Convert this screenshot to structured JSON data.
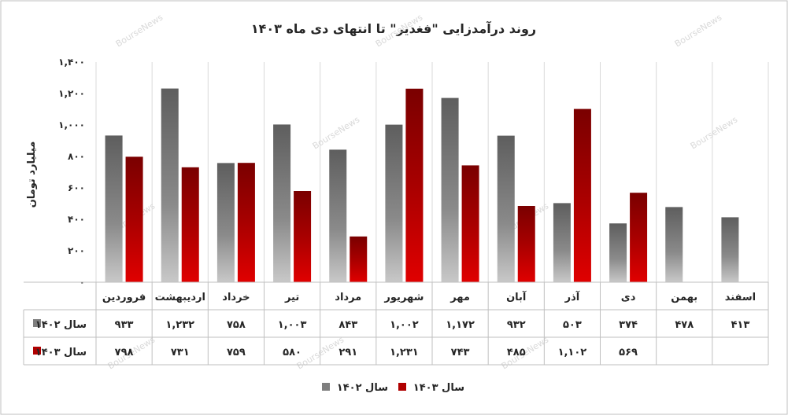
{
  "chart_data": {
    "type": "bar",
    "title": "روند درآمدزایی \"فغدیر\" تا انتهای دی ماه ۱۴۰۳",
    "ylabel": "میلیارد تومان",
    "xlabel": "",
    "ylim": [
      0,
      1400
    ],
    "yticks": [
      0,
      200,
      400,
      600,
      800,
      1000,
      1200,
      1400
    ],
    "ytick_labels": [
      "۰",
      "۲۰۰",
      "۴۰۰",
      "۶۰۰",
      "۸۰۰",
      "۱,۰۰۰",
      "۱,۲۰۰",
      "۱,۴۰۰"
    ],
    "grid": "vertical category separators",
    "legend_position": "bottom",
    "categories": [
      "فروردین",
      "اردیبهشت",
      "خرداد",
      "تیر",
      "مرداد",
      "شهریور",
      "مهر",
      "آبان",
      "آذر",
      "دی",
      "بهمن",
      "اسفند"
    ],
    "series": [
      {
        "name": "سال ۱۴۰۲",
        "color": "#7f7f7f",
        "values": [
          933,
          1232,
          758,
          1003,
          843,
          1002,
          1172,
          932,
          503,
          374,
          478,
          413
        ],
        "labels": [
          "۹۳۳",
          "۱,۲۳۲",
          "۷۵۸",
          "۱,۰۰۳",
          "۸۴۳",
          "۱,۰۰۲",
          "۱,۱۷۲",
          "۹۳۲",
          "۵۰۳",
          "۳۷۴",
          "۴۷۸",
          "۴۱۳"
        ]
      },
      {
        "name": "سال ۱۴۰۳",
        "color": "#b00000",
        "values": [
          798,
          731,
          759,
          580,
          291,
          1231,
          743,
          485,
          1102,
          569,
          null,
          null
        ],
        "labels": [
          "۷۹۸",
          "۷۳۱",
          "۷۵۹",
          "۵۸۰",
          "۲۹۱",
          "۱,۲۳۱",
          "۷۴۳",
          "۴۸۵",
          "۱,۱۰۲",
          "۵۶۹",
          "",
          ""
        ]
      }
    ]
  },
  "watermark": "BourseNews"
}
